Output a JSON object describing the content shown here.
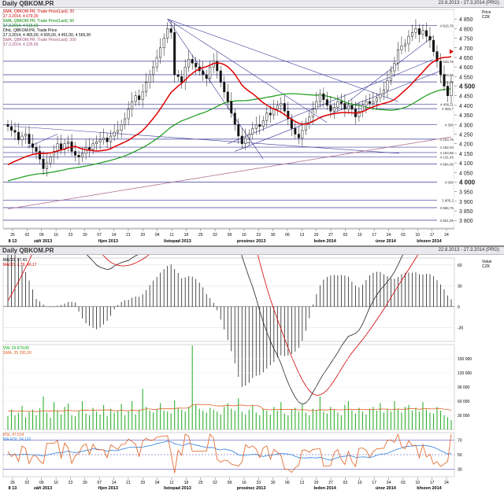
{
  "chart_data": [
    {
      "type": "candlestick",
      "title": "Daily QBKOM.PR",
      "date_range": "22.8.2013 - 27.3.2014 (PRG)",
      "yaxis_title": "Price",
      "yaxis_unit": "CZK",
      "ylim": [
        3760,
        4900
      ],
      "yticks": [
        "3 800",
        "3 850",
        "3 900",
        "3 950",
        "4 000",
        "4 050",
        "4 100",
        "4 150",
        "4 200",
        "4 250",
        "4 300",
        "4 350",
        "4 400",
        "4 450",
        "4 500",
        "4 550",
        "4 600",
        "4 650",
        "4 700",
        "4 750",
        "4 800",
        "4 850"
      ],
      "bold_ticks": [
        "4 000",
        "4 500"
      ],
      "hlines": [
        4816.76,
        4629.76,
        4559.66,
        4522.09,
        4406.11,
        4382.7,
        4300.0,
        4223.76,
        4182.04,
        4153.86,
        4131.45,
        4094.06,
        4000.0,
        3905.3,
        3866.76,
        3801.05
      ],
      "hline_labels": [
        "4 816,76",
        "4 629,76",
        "4 559,66",
        "4 522,09",
        "4 406,11",
        "4 382,7",
        "4 300",
        "4 223,76",
        "4 182,04",
        "4 153,86",
        "4 131,45",
        "4 094,06",
        "4 000",
        "3 905,3",
        "3 866,76",
        "3 801,05"
      ],
      "last_price": "4 500",
      "legend": [
        {
          "text": "SMA, QBKOM.PR, Trade Price(Last); 20",
          "color": "#d00000"
        },
        {
          "text": "17.3.2014, 4 679,30",
          "color": "#d00000"
        },
        {
          "text": "SMA, QBKOM.PR, Trade Price(Last); 50",
          "color": "#008800"
        },
        {
          "text": "17.3.2014, 4 515,60",
          "color": "#008800"
        },
        {
          "text": "Ohlc, QBKOM.PR, Trade Price",
          "color": "#000000"
        },
        {
          "text": "17.3.2014, 4 465,00, 4 565,00, 4 451,00, 4 565,00",
          "color": "#000000"
        },
        {
          "text": "SMA, QBKOM.PR, Trade Price(Last); 200",
          "color": "#a0507a"
        },
        {
          "text": "17.3.2014, 4 235,56",
          "color": "#a0507a"
        }
      ],
      "x_day_ticks": [
        "26",
        "02",
        "09",
        "16",
        "23",
        "30",
        "07",
        "14",
        "21",
        "29",
        "04",
        "11",
        "18",
        "25",
        "02",
        "09",
        "16",
        "23",
        "30",
        "06",
        "13",
        "20",
        "27",
        "03",
        "10",
        "17",
        "24",
        "03",
        "10",
        "17",
        "24"
      ],
      "x_month_labels": [
        "8 13",
        "září 2013",
        "říjen 2013",
        "listopad 2013",
        "prosinec 2013",
        "leden 2014",
        "únor 2014",
        "březen 2014"
      ],
      "closes": [
        4290,
        4270,
        4260,
        4220,
        4240,
        4250,
        4200,
        4180,
        4160,
        4120,
        4070,
        4100,
        4130,
        4160,
        4200,
        4170,
        4200,
        4210,
        4160,
        4140,
        4130,
        4150,
        4180,
        4170,
        4200,
        4210,
        4220,
        4230,
        4210,
        4240,
        4260,
        4270,
        4300,
        4330,
        4380,
        4420,
        4450,
        4430,
        4470,
        4520,
        4560,
        4600,
        4650,
        4700,
        4750,
        4800,
        4780,
        4560,
        4550,
        4520,
        4600,
        4640,
        4620,
        4600,
        4580,
        4560,
        4540,
        4600,
        4630,
        4580,
        4520,
        4470,
        4420,
        4360,
        4300,
        4240,
        4200,
        4230,
        4250,
        4280,
        4300,
        4290,
        4320,
        4360,
        4350,
        4380,
        4400,
        4410,
        4370,
        4330,
        4280,
        4250,
        4230,
        4270,
        4310,
        4340,
        4380,
        4420,
        4460,
        4430,
        4400,
        4370,
        4390,
        4420,
        4410,
        4380,
        4400,
        4380,
        4340,
        4370,
        4400,
        4420,
        4410,
        4420,
        4440,
        4460,
        4480,
        4530,
        4580,
        4620,
        4690,
        4710,
        4720,
        4760,
        4780,
        4800,
        4770,
        4790,
        4760,
        4740,
        4680,
        4630,
        4560,
        4500,
        4450,
        4520
      ],
      "sma20_end": 4679.3,
      "sma50_end": 4515.6,
      "sma200_end": 4235.56
    },
    {
      "type": "line",
      "title": "Daily QBKOM.PR",
      "date_range": "22.8.2013 - 27.3.2014 (PRG)",
      "yaxis_title": "Value",
      "yaxis_unit": "CZK",
      "ylim": [
        -50,
        70
      ],
      "yticks": [
        "60",
        "30",
        "0",
        "-30"
      ],
      "legend": [
        {
          "text": "MACD, 37,43",
          "color": "#000000"
        },
        {
          "text": "MACD, 2,79, 40,17",
          "color": "#d00000"
        }
      ]
    },
    {
      "type": "bar",
      "ylim": [
        0,
        180000
      ],
      "yticks": [
        "150 000",
        "120 000",
        "90 000",
        "60 000",
        "30 000"
      ],
      "legend": [
        {
          "text": "VW, 19 679,00",
          "color": "#00a000"
        },
        {
          "text": "SMA, 35 295,30",
          "color": "#e06020"
        }
      ],
      "volume": [
        28000,
        42000,
        30000,
        35000,
        50000,
        26000,
        38000,
        42000,
        30000,
        45000,
        70000,
        36000,
        25000,
        58000,
        40000,
        32000,
        48000,
        55000,
        30000,
        28000,
        40000,
        60000,
        34000,
        30000,
        46000,
        38000,
        32000,
        52000,
        28000,
        44000,
        36000,
        40000,
        54000,
        30000,
        38000,
        60000,
        32000,
        42000,
        86000,
        48000,
        40000,
        36000,
        44000,
        56000,
        40000,
        38000,
        34000,
        62000,
        46000,
        42000,
        38000,
        48000,
        178000,
        54000,
        44000,
        40000,
        36000,
        46000,
        42000,
        38000,
        32000,
        48000,
        56000,
        44000,
        40000,
        66000,
        38000,
        32000,
        42000,
        52000,
        36000,
        30000,
        44000,
        40000,
        32000,
        48000,
        40000,
        58000,
        34000,
        30000,
        42000,
        46000,
        38000,
        52000,
        36000,
        30000,
        44000,
        40000,
        70000,
        38000,
        34000,
        48000,
        42000,
        36000,
        30000,
        52000,
        60000,
        40000,
        34000,
        46000,
        38000,
        32000,
        44000,
        48000,
        40000,
        56000,
        36000,
        42000,
        38000,
        60000,
        44000,
        36000,
        48000,
        52000,
        40000,
        46000,
        38000,
        58000,
        42000,
        36000,
        34000,
        48000,
        40000,
        30000,
        26000,
        20000
      ]
    },
    {
      "type": "line",
      "ylim": [
        20,
        80
      ],
      "yticks": [
        "70",
        "50",
        "30"
      ],
      "legend": [
        {
          "text": "RSI, 47,514",
          "color": "#e06020"
        },
        {
          "text": "MA-RSI, 54,116",
          "color": "#3080e0"
        }
      ],
      "x_day_ticks": [
        "26",
        "02",
        "09",
        "16",
        "23",
        "30",
        "07",
        "14",
        "21",
        "29",
        "04",
        "11",
        "18",
        "25",
        "02",
        "09",
        "16",
        "23",
        "30",
        "06",
        "13",
        "20",
        "27",
        "03",
        "10",
        "17",
        "24",
        "03",
        "10",
        "17",
        "24"
      ],
      "x_month_labels": [
        "8 13",
        "září 2013",
        "říjen 2013",
        "listopad 2013",
        "prosinec 2013",
        "leden 2014",
        "únor 2014",
        "březen 2014"
      ]
    }
  ]
}
